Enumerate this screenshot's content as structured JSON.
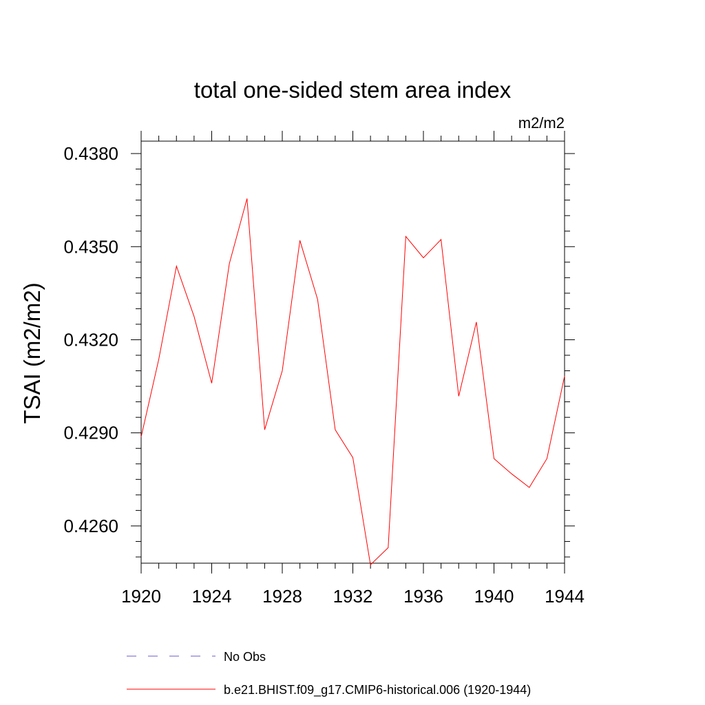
{
  "chart_data": {
    "type": "line",
    "title": "total one-sided stem area index",
    "units_label": "m2/m2",
    "ylabel": "TSAI  (m2/m2)",
    "xlabel": "",
    "xlim": [
      1920,
      1944
    ],
    "ylim": [
      0.4248,
      0.4384
    ],
    "x_ticks": [
      1920,
      1924,
      1928,
      1932,
      1936,
      1940,
      1944
    ],
    "x_tick_labels": [
      "1920",
      "1924",
      "1928",
      "1932",
      "1936",
      "1940",
      "1944"
    ],
    "y_ticks": [
      0.426,
      0.429,
      0.432,
      0.435,
      0.438
    ],
    "y_tick_labels": [
      "0.4260",
      "0.4290",
      "0.4320",
      "0.4350",
      "0.4380"
    ],
    "y_minor_step": 0.0005,
    "grid": false,
    "legend_position": "bottom",
    "series": [
      {
        "name": "b.e21.BHIST.f09_g17.CMIP6-historical.006 (1920-1944)",
        "color": "#ff0000",
        "style": "solid",
        "x": [
          1920,
          1921,
          1922,
          1923,
          1924,
          1925,
          1926,
          1927,
          1928,
          1929,
          1930,
          1931,
          1932,
          1933,
          1934,
          1935,
          1936,
          1937,
          1938,
          1939,
          1940,
          1941,
          1942,
          1943,
          1944
        ],
        "values": [
          0.42887,
          0.43137,
          0.43437,
          0.43275,
          0.4306,
          0.43445,
          0.43655,
          0.4291,
          0.431,
          0.4352,
          0.4333,
          0.4291,
          0.4282,
          0.42475,
          0.4253,
          0.43533,
          0.43464,
          0.43523,
          0.43018,
          0.43257,
          0.42817,
          0.42768,
          0.42724,
          0.42817,
          0.43083
        ]
      }
    ],
    "legend": [
      {
        "label": "No Obs",
        "color": "#6a5acd",
        "style": "dashed"
      },
      {
        "label": "b.e21.BHIST.f09_g17.CMIP6-historical.006 (1920-1944)",
        "color": "#ff0000",
        "style": "solid"
      }
    ]
  }
}
